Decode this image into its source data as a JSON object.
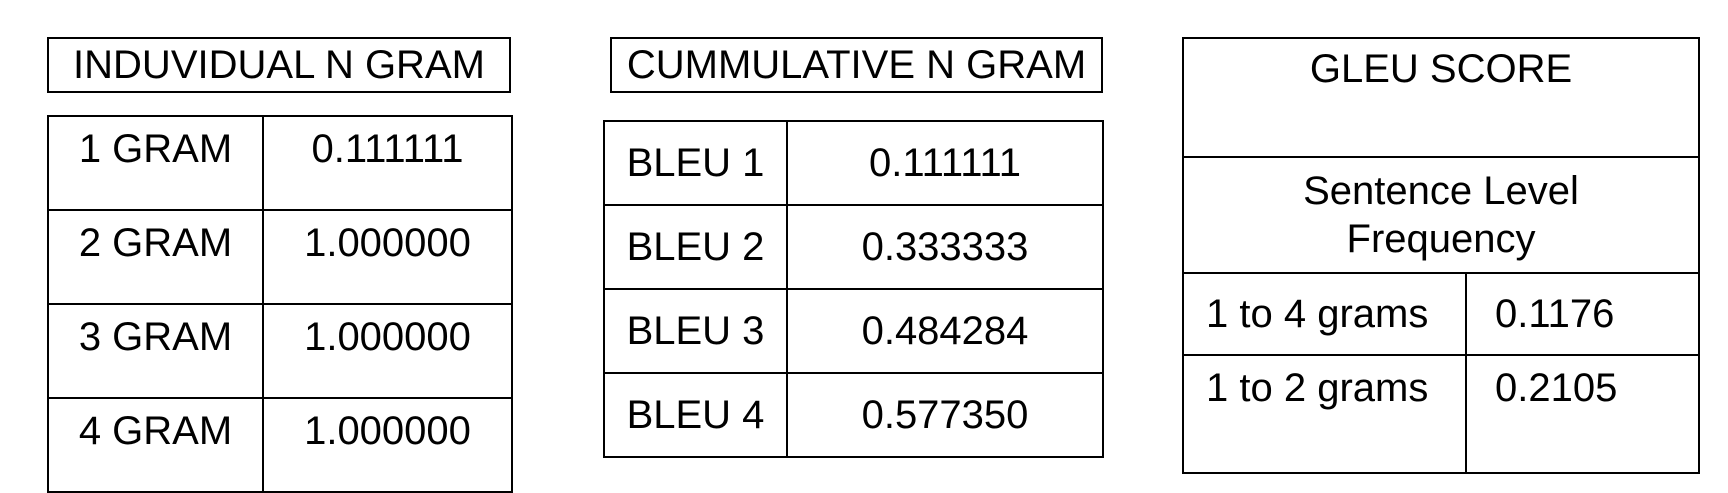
{
  "table1": {
    "title": "INDUVIDUAL N GRAM",
    "rows": [
      {
        "label": "1 GRAM",
        "value": "0.111111"
      },
      {
        "label": "2 GRAM",
        "value": "1.000000"
      },
      {
        "label": "3 GRAM",
        "value": "1.000000"
      },
      {
        "label": "4 GRAM",
        "value": "1.000000"
      }
    ]
  },
  "table2": {
    "title": "CUMMULATIVE N GRAM",
    "rows": [
      {
        "label": "BLEU 1",
        "value": "0.111111"
      },
      {
        "label": "BLEU 2",
        "value": "0.333333"
      },
      {
        "label": "BLEU 3",
        "value": "0.484284"
      },
      {
        "label": "BLEU 4",
        "value": "0.577350"
      }
    ]
  },
  "table3": {
    "title": "GLEU SCORE",
    "subtitle_line1": "Sentence Level",
    "subtitle_line2": "Frequency",
    "rows": [
      {
        "label": "1 to 4 grams",
        "value": "0.1176"
      },
      {
        "label": "1 to 2 grams",
        "value": "0.2105"
      }
    ]
  }
}
